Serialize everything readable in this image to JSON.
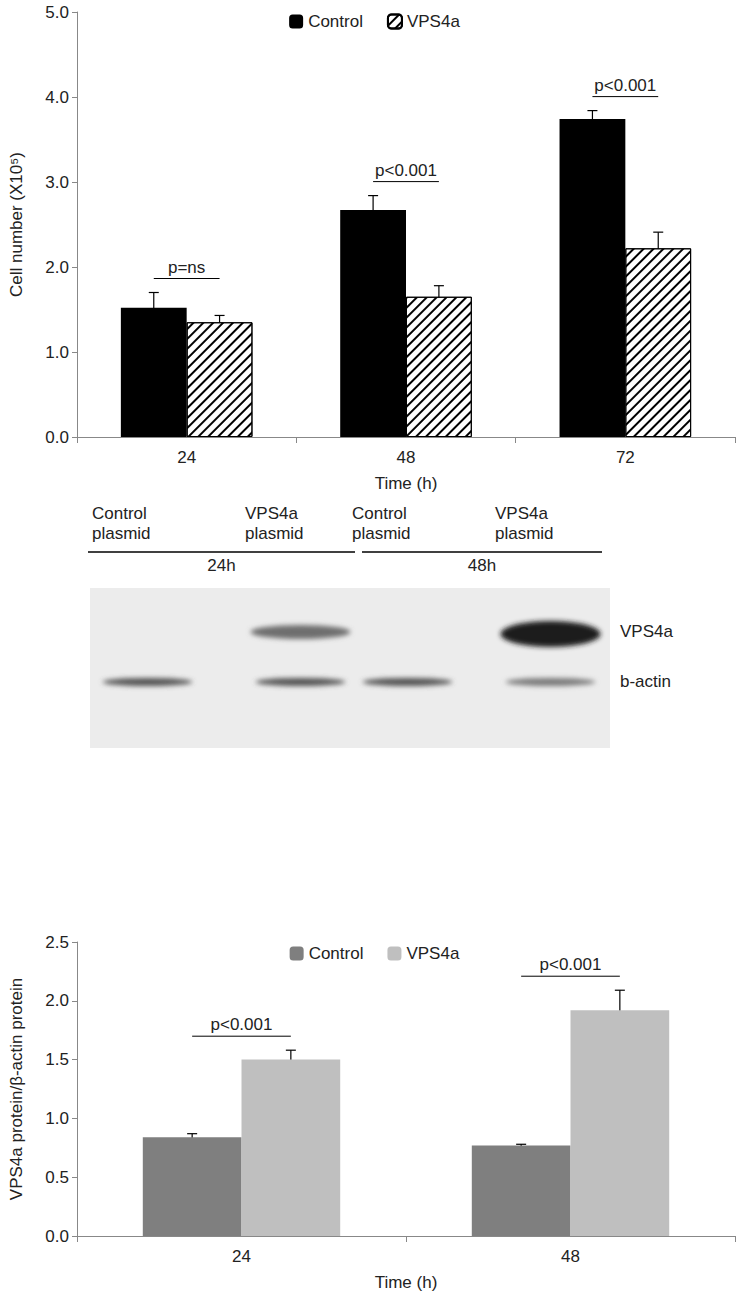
{
  "chart_data": [
    {
      "type": "bar",
      "ylabel": "Cell number (X10⁵)",
      "xlabel": "Time (h)",
      "categories": [
        "24",
        "48",
        "72"
      ],
      "series": [
        {
          "name": "Control",
          "color": "#000000",
          "values": [
            1.52,
            2.67,
            3.74
          ],
          "errors": [
            0.18,
            0.17,
            0.1
          ]
        },
        {
          "name": "VPS4a",
          "color": "#ffffff",
          "values": [
            1.35,
            1.65,
            2.22
          ],
          "errors": [
            0.08,
            0.13,
            0.19
          ]
        }
      ],
      "annotations": [
        {
          "category": "24",
          "text": "p=ns"
        },
        {
          "category": "48",
          "text": "p<0.001"
        },
        {
          "category": "72",
          "text": "p<0.001"
        }
      ],
      "ylim": [
        0,
        5
      ],
      "yticks": [
        {
          "value": 0,
          "label": "0.0"
        },
        {
          "value": 1,
          "label": "1.0"
        },
        {
          "value": 2,
          "label": "2.0"
        },
        {
          "value": 3,
          "label": "3.0"
        },
        {
          "value": 4,
          "label": "4.0"
        },
        {
          "value": 5,
          "label": "5.0"
        }
      ],
      "grid": false,
      "legend": "top"
    },
    {
      "type": "bar",
      "ylabel": "VPS4a protein/β-actin protein",
      "xlabel": "Time (h)",
      "categories": [
        "24",
        "48"
      ],
      "series": [
        {
          "name": "Control",
          "color": "#7f7f7f",
          "values": [
            0.84,
            0.77
          ],
          "errors": [
            0.03,
            0.01
          ]
        },
        {
          "name": "VPS4a",
          "color": "#bfbfbf",
          "values": [
            1.5,
            1.92
          ],
          "errors": [
            0.08,
            0.17
          ]
        }
      ],
      "annotations": [
        {
          "category": "24",
          "text": "p<0.001"
        },
        {
          "category": "48",
          "text": "p<0.001"
        }
      ],
      "ylim": [
        0,
        2.5
      ],
      "yticks": [
        {
          "value": 0,
          "label": "0.0"
        },
        {
          "value": 0.5,
          "label": "0.5"
        },
        {
          "value": 1,
          "label": "1.0"
        },
        {
          "value": 1.5,
          "label": "1.5"
        },
        {
          "value": 2,
          "label": "2.0"
        },
        {
          "value": 2.5,
          "label": "2.5"
        }
      ],
      "grid": false,
      "legend": "top"
    }
  ],
  "western_blot": {
    "groups": [
      {
        "label": "24h",
        "lanes": [
          "Control plasmid",
          "VPS4a plasmid"
        ]
      },
      {
        "label": "48h",
        "lanes": [
          "Control plasmid",
          "VPS4a plasmid"
        ]
      }
    ],
    "bands": [
      "VPS4a",
      "b-actin"
    ]
  }
}
